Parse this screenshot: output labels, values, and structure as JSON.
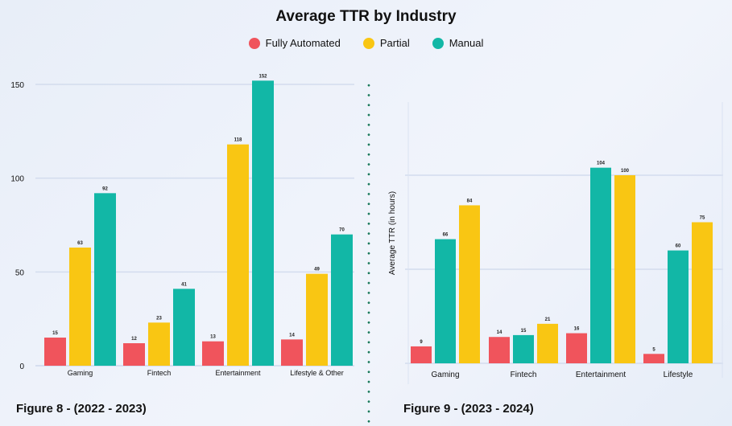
{
  "title": "Average TTR by Industry",
  "legend": [
    {
      "label": "Fully Automated",
      "color": "#f0545c"
    },
    {
      "label": "Partial",
      "color": "#f9c613"
    },
    {
      "label": "Manual",
      "color": "#12b7a6"
    }
  ],
  "chart_data": [
    {
      "type": "bar",
      "title": "Figure 8 - (2022 - 2023)",
      "xlabel": "",
      "ylabel": "",
      "ylim": [
        0,
        150
      ],
      "yticks": [
        0,
        50,
        100,
        150
      ],
      "grid": true,
      "categories": [
        "Gaming",
        "Fintech",
        "Entertainment",
        "Lifestyle & Other"
      ],
      "series": [
        {
          "name": "Fully Automated",
          "color": "#f0545c",
          "values": [
            15,
            12,
            13,
            14
          ]
        },
        {
          "name": "Partial",
          "color": "#f9c613",
          "values": [
            63,
            23,
            118,
            49
          ]
        },
        {
          "name": "Manual",
          "color": "#12b7a6",
          "values": [
            92,
            41,
            152,
            70
          ]
        }
      ]
    },
    {
      "type": "bar",
      "title": "Figure 9 - (2023 - 2024)",
      "xlabel": "",
      "ylabel": "Average TTR (in hours)",
      "ylim": [
        0,
        150
      ],
      "yticks": [],
      "grid": true,
      "categories": [
        "Gaming",
        "Fintech",
        "Entertainment",
        "Lifestyle"
      ],
      "series": [
        {
          "name": "Fully Automated",
          "color": "#f0545c",
          "values": [
            9,
            14,
            16,
            5
          ]
        },
        {
          "name": "Manual",
          "color": "#12b7a6",
          "values": [
            66,
            15,
            104,
            60
          ]
        },
        {
          "name": "Partial",
          "color": "#f9c613",
          "values": [
            84,
            21,
            100,
            75
          ]
        }
      ]
    }
  ]
}
